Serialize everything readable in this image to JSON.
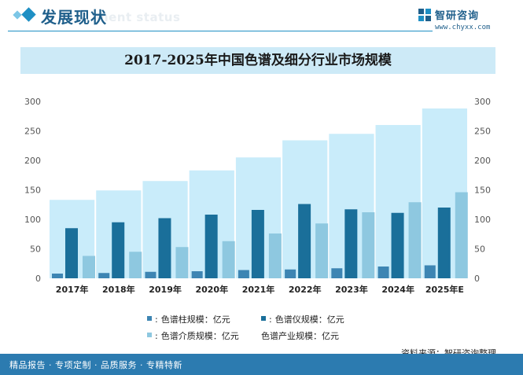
{
  "header": {
    "title": "发展现状",
    "subtitle_faded": "ment status"
  },
  "logo": {
    "name": "智研咨询",
    "url": "www.chyxx.com"
  },
  "chart_data": {
    "type": "bar",
    "title": "2017-2025年中国色谱及细分行业市场规模",
    "categories": [
      "2017年",
      "2018年",
      "2019年",
      "2020年",
      "2021年",
      "2022年",
      "2023年",
      "2024年",
      "2025年E"
    ],
    "ylim": [
      0,
      300
    ],
    "yticks": [
      0,
      50,
      100,
      150,
      200,
      250,
      300
    ],
    "grid": false,
    "series": [
      {
        "name": "色谱柱规模：亿元",
        "axis": "left",
        "color": "#3d85b3",
        "values": [
          8,
          9,
          11,
          12,
          14,
          15,
          17,
          20,
          22
        ]
      },
      {
        "name": "色谱仪规模：亿元",
        "axis": "left",
        "color": "#1a6f9a",
        "values": [
          85,
          95,
          102,
          108,
          116,
          126,
          117,
          111,
          120
        ]
      },
      {
        "name": "色谱介质规模：亿元",
        "axis": "left",
        "color": "#8ec8e0",
        "values": [
          38,
          45,
          53,
          63,
          76,
          93,
          112,
          129,
          146
        ]
      },
      {
        "name": "色谱产业规模：亿元",
        "axis": "right",
        "color": "#c9ecfa",
        "values": [
          133,
          149,
          165,
          183,
          205,
          234,
          245,
          260,
          288
        ]
      }
    ],
    "legend_position": "bottom"
  },
  "source": "资料来源：智研咨询整理",
  "footer": "精品报告 · 专项定制 · 品质服务 · 专精特新"
}
